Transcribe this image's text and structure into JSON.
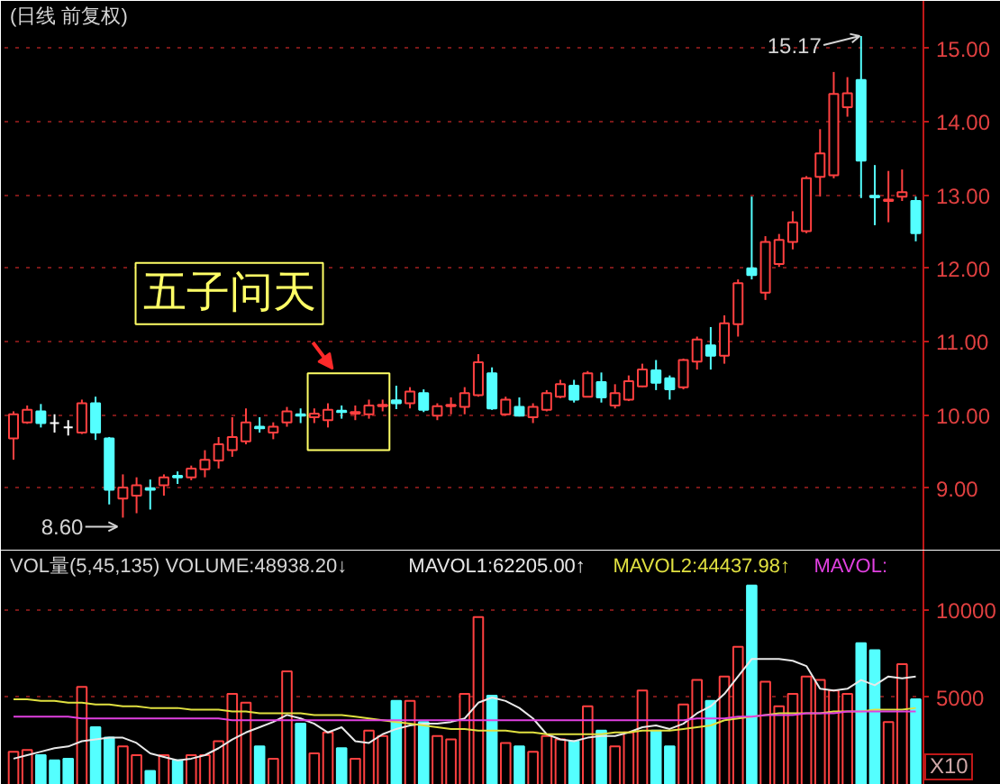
{
  "chart_data": [
    {
      "type": "candlestick",
      "title": "(日线 前复权)",
      "categories": [
        null,
        null,
        null,
        null,
        null,
        null,
        null,
        null,
        null,
        null,
        null,
        null,
        null,
        null,
        null,
        null,
        null,
        null,
        null,
        null,
        null,
        null,
        null,
        null,
        null,
        null,
        null,
        null,
        null,
        null,
        null,
        null,
        null,
        null,
        null,
        null,
        null,
        null,
        null,
        null,
        null,
        null,
        null,
        null,
        null,
        null,
        null,
        null,
        null,
        null,
        null,
        null,
        null,
        null,
        null,
        null,
        null,
        null,
        null,
        null,
        null,
        null,
        null,
        null,
        null,
        null,
        null
      ],
      "ohlc": [
        [
          9.68,
          10.05,
          9.39,
          10.01
        ],
        [
          9.9,
          10.13,
          9.88,
          10.07
        ],
        [
          10.05,
          10.15,
          9.83,
          9.89
        ],
        [
          9.89,
          10.01,
          9.76,
          9.89
        ],
        [
          9.83,
          9.93,
          9.72,
          9.83
        ],
        [
          9.76,
          10.21,
          9.74,
          10.16
        ],
        [
          10.16,
          10.25,
          9.66,
          9.76
        ],
        [
          9.68,
          9.7,
          8.78,
          8.98
        ],
        [
          8.86,
          9.19,
          8.6,
          9.01
        ],
        [
          8.9,
          9.15,
          8.66,
          9.04
        ],
        [
          9.0,
          9.12,
          8.71,
          8.98
        ],
        [
          9.04,
          9.19,
          8.9,
          9.15
        ],
        [
          9.17,
          9.23,
          9.06,
          9.15
        ],
        [
          9.15,
          9.31,
          9.11,
          9.27
        ],
        [
          9.26,
          9.52,
          9.15,
          9.39
        ],
        [
          9.38,
          9.7,
          9.27,
          9.6
        ],
        [
          9.52,
          9.97,
          9.43,
          9.7
        ],
        [
          9.64,
          10.09,
          9.6,
          9.9
        ],
        [
          9.84,
          9.97,
          9.76,
          9.82
        ],
        [
          9.76,
          9.9,
          9.67,
          9.84
        ],
        [
          9.9,
          10.11,
          9.84,
          10.05
        ],
        [
          10.01,
          10.09,
          9.89,
          9.99
        ],
        [
          9.97,
          10.09,
          9.89,
          10.02
        ],
        [
          9.93,
          10.16,
          9.83,
          10.07
        ],
        [
          10.06,
          10.13,
          9.95,
          10.04
        ],
        [
          10.02,
          10.13,
          9.93,
          10.04
        ],
        [
          10.01,
          10.21,
          9.95,
          10.13
        ],
        [
          10.12,
          10.21,
          10.05,
          10.14
        ],
        [
          10.2,
          10.4,
          10.08,
          10.16
        ],
        [
          10.16,
          10.38,
          10.09,
          10.32
        ],
        [
          10.3,
          10.35,
          10.04,
          10.07
        ],
        [
          9.99,
          10.16,
          9.93,
          10.12
        ],
        [
          10.12,
          10.24,
          10.01,
          10.14
        ],
        [
          10.11,
          10.38,
          10.01,
          10.3
        ],
        [
          10.27,
          10.83,
          10.25,
          10.72
        ],
        [
          10.57,
          10.65,
          10.07,
          10.09
        ],
        [
          10.01,
          10.25,
          9.99,
          10.21
        ],
        [
          10.11,
          10.24,
          9.98,
          9.99
        ],
        [
          9.97,
          10.16,
          9.89,
          10.11
        ],
        [
          10.07,
          10.34,
          10.05,
          10.3
        ],
        [
          10.25,
          10.48,
          10.23,
          10.42
        ],
        [
          10.4,
          10.48,
          10.17,
          10.21
        ],
        [
          10.25,
          10.6,
          10.24,
          10.57
        ],
        [
          10.45,
          10.58,
          10.17,
          10.24
        ],
        [
          10.13,
          10.42,
          10.09,
          10.3
        ],
        [
          10.21,
          10.54,
          10.19,
          10.46
        ],
        [
          10.39,
          10.7,
          10.38,
          10.62
        ],
        [
          10.61,
          10.75,
          10.34,
          10.44
        ],
        [
          10.5,
          10.54,
          10.21,
          10.35
        ],
        [
          10.38,
          10.77,
          10.35,
          10.75
        ],
        [
          10.73,
          11.07,
          10.62,
          11.03
        ],
        [
          10.95,
          11.2,
          10.62,
          10.81
        ],
        [
          10.81,
          11.36,
          10.7,
          11.25
        ],
        [
          11.24,
          11.85,
          11.07,
          11.8
        ],
        [
          12.0,
          12.98,
          11.85,
          11.91
        ],
        [
          11.67,
          12.44,
          11.57,
          12.36
        ],
        [
          12.06,
          12.47,
          12.02,
          12.39
        ],
        [
          12.36,
          12.78,
          12.26,
          12.63
        ],
        [
          12.51,
          13.26,
          12.48,
          13.23
        ],
        [
          13.25,
          13.9,
          12.98,
          13.57
        ],
        [
          13.27,
          14.68,
          13.23,
          14.38
        ],
        [
          14.2,
          14.61,
          14.07,
          14.39
        ],
        [
          14.57,
          15.17,
          12.96,
          13.47
        ],
        [
          12.99,
          13.41,
          12.59,
          12.97
        ],
        [
          12.92,
          13.33,
          12.63,
          12.94
        ],
        [
          12.98,
          13.35,
          12.92,
          13.04
        ],
        [
          12.92,
          12.98,
          12.37,
          12.48
        ]
      ],
      "colors": [
        "#ff4040",
        "#ff4040",
        "#54ffff",
        "#ffffff",
        "#ffffff",
        "#ff4040",
        "#54ffff",
        "#54ffff",
        "#ff4040",
        "#ff4040",
        "#54ffff",
        "#ff4040",
        "#54ffff",
        "#ff4040",
        "#ff4040",
        "#ff4040",
        "#ff4040",
        "#ff4040",
        "#54ffff",
        "#ff4040",
        "#ff4040",
        "#54ffff",
        "#ff4040",
        "#ff4040",
        "#54ffff",
        "#ff4040",
        "#ff4040",
        "#ff4040",
        "#54ffff",
        "#ff4040",
        "#54ffff",
        "#ff4040",
        "#ff4040",
        "#ff4040",
        "#ff4040",
        "#54ffff",
        "#ff4040",
        "#54ffff",
        "#ff4040",
        "#ff4040",
        "#ff4040",
        "#54ffff",
        "#ff4040",
        "#54ffff",
        "#ff4040",
        "#ff4040",
        "#ff4040",
        "#54ffff",
        "#54ffff",
        "#ff4040",
        "#ff4040",
        "#54ffff",
        "#ff4040",
        "#ff4040",
        "#54ffff",
        "#ff4040",
        "#ff4040",
        "#ff4040",
        "#ff4040",
        "#ff4040",
        "#ff4040",
        "#ff4040",
        "#54ffff",
        "#54ffff",
        "#ff4040",
        "#ff4040",
        "#54ffff"
      ],
      "ylim": [
        8.15,
        15.65
      ],
      "yticks": [
        {
          "value": 9,
          "label": "9.00"
        },
        {
          "value": 10,
          "label": "10.00"
        },
        {
          "value": 11,
          "label": "11.00"
        },
        {
          "value": 12,
          "label": "12.00"
        },
        {
          "value": 13,
          "label": "13.00"
        },
        {
          "value": 14,
          "label": "14.00"
        },
        {
          "value": 15,
          "label": "15.00"
        }
      ],
      "grid": "y",
      "annotations": [
        "15.17",
        "8.60",
        "五子问天"
      ]
    },
    {
      "type": "bar",
      "title": "VOL量(5,45,135) VOLUME:48938.20↓",
      "categories": [
        null,
        null,
        null,
        null,
        null,
        null,
        null,
        null,
        null,
        null,
        null,
        null,
        null,
        null,
        null,
        null,
        null,
        null,
        null,
        null,
        null,
        null,
        null,
        null,
        null,
        null,
        null,
        null,
        null,
        null,
        null,
        null,
        null,
        null,
        null,
        null,
        null,
        null,
        null,
        null,
        null,
        null,
        null,
        null,
        null,
        null,
        null,
        null,
        null,
        null,
        null,
        null,
        null,
        null,
        null,
        null,
        null,
        null,
        null,
        null,
        null,
        null,
        null,
        null,
        null,
        null,
        null
      ],
      "series": [
        {
          "type": "bar",
          "colors": [
            "#ff4040",
            "#ff4040",
            "#54ffff",
            "#54ffff",
            "#54ffff",
            "#ff4040",
            "#54ffff",
            "#54ffff",
            "#ff4040",
            "#ff4040",
            "#54ffff",
            "#ff4040",
            "#54ffff",
            "#ff4040",
            "#ff4040",
            "#ff4040",
            "#ff4040",
            "#ff4040",
            "#54ffff",
            "#ff4040",
            "#ff4040",
            "#54ffff",
            "#ff4040",
            "#ff4040",
            "#54ffff",
            "#ff4040",
            "#ff4040",
            "#ff4040",
            "#54ffff",
            "#ff4040",
            "#54ffff",
            "#ff4040",
            "#ff4040",
            "#ff4040",
            "#ff4040",
            "#54ffff",
            "#ff4040",
            "#54ffff",
            "#ff4040",
            "#ff4040",
            "#ff4040",
            "#54ffff",
            "#ff4040",
            "#54ffff",
            "#ff4040",
            "#ff4040",
            "#ff4040",
            "#54ffff",
            "#54ffff",
            "#ff4040",
            "#ff4040",
            "#54ffff",
            "#ff4040",
            "#ff4040",
            "#54ffff",
            "#ff4040",
            "#ff4040",
            "#ff4040",
            "#ff4040",
            "#ff4040",
            "#ff4040",
            "#ff4040",
            "#54ffff",
            "#54ffff",
            "#ff4040",
            "#ff4040",
            "#54ffff"
          ],
          "values": [
            1900,
            2000,
            1700,
            1400,
            1500,
            5600,
            3300,
            2700,
            2200,
            1700,
            800,
            1700,
            1400,
            1700,
            1700,
            2500,
            5200,
            4700,
            2200,
            1500,
            6500,
            3500,
            1800,
            3000,
            2100,
            1500,
            3100,
            2800,
            4800,
            4800,
            3600,
            2800,
            2600,
            5200,
            9600,
            5100,
            2400,
            2200,
            1900,
            2800,
            2600,
            2500,
            4500,
            3100,
            2200,
            3000,
            5400,
            3100,
            2200,
            4600,
            6000,
            4800,
            6200,
            7900,
            11400,
            5900,
            4500,
            5200,
            6200,
            6000,
            5400,
            5200,
            8100,
            7700,
            3600,
            6900,
            4900
          ]
        },
        {
          "name": "MAVOL1:62205.00↑",
          "type": "line",
          "color": "#e8e8e8",
          "values": [
            1500,
            1700,
            1900,
            2100,
            2200,
            2500,
            2600,
            2700,
            2700,
            2400,
            1800,
            1600,
            1400,
            1500,
            1700,
            2100,
            2600,
            3000,
            3300,
            3600,
            4000,
            3800,
            3500,
            3000,
            3300,
            2500,
            2400,
            2900,
            3200,
            3400,
            3500,
            3500,
            3600,
            3800,
            4700,
            5000,
            4800,
            4400,
            3800,
            2900,
            2600,
            2500,
            2700,
            2800,
            2800,
            3000,
            3300,
            3400,
            3200,
            3500,
            4100,
            4500,
            5200,
            6200,
            7200,
            7200,
            7200,
            7100,
            6800,
            5500,
            5400,
            5500,
            6000,
            5700,
            6200,
            6100,
            6200
          ]
        },
        {
          "name": "MAVOL2:44437.98↑",
          "type": "line",
          "color": "#e0e040",
          "values": [
            4900,
            4900,
            4800,
            4800,
            4700,
            4700,
            4600,
            4600,
            4500,
            4500,
            4400,
            4400,
            4400,
            4300,
            4300,
            4300,
            4200,
            4200,
            4100,
            4100,
            4100,
            4100,
            4000,
            4000,
            4000,
            3900,
            3800,
            3700,
            3600,
            3500,
            3400,
            3300,
            3200,
            3200,
            3100,
            3100,
            3100,
            3000,
            3000,
            2900,
            2900,
            2900,
            2900,
            2900,
            3000,
            3000,
            3100,
            3100,
            3100,
            3200,
            3300,
            3400,
            3700,
            3800,
            3900,
            4000,
            4100,
            4100,
            4100,
            4100,
            4200,
            4200,
            4200,
            4300,
            4300,
            4300,
            4400
          ]
        },
        {
          "name": "MAVOL:",
          "type": "line",
          "color": "#e040e0",
          "values": [
            3900,
            3900,
            3900,
            3900,
            3900,
            3800,
            3800,
            3800,
            3800,
            3800,
            3800,
            3800,
            3800,
            3800,
            3800,
            3800,
            3700,
            3700,
            3700,
            3700,
            3700,
            3700,
            3700,
            3700,
            3700,
            3700,
            3700,
            3700,
            3700,
            3700,
            3700,
            3700,
            3700,
            3700,
            3700,
            3700,
            3700,
            3700,
            3700,
            3700,
            3700,
            3700,
            3700,
            3700,
            3700,
            3700,
            3700,
            3700,
            3700,
            3700,
            3800,
            3800,
            3800,
            3900,
            3900,
            4000,
            4000,
            4000,
            4100,
            4100,
            4100,
            4200,
            4200,
            4200,
            4200,
            4200,
            4200
          ]
        }
      ],
      "ylim": [
        0,
        13400
      ],
      "yticks": [
        5000,
        10000
      ],
      "grid": "y",
      "legend": "top right",
      "annotations": [
        "X10"
      ]
    }
  ]
}
